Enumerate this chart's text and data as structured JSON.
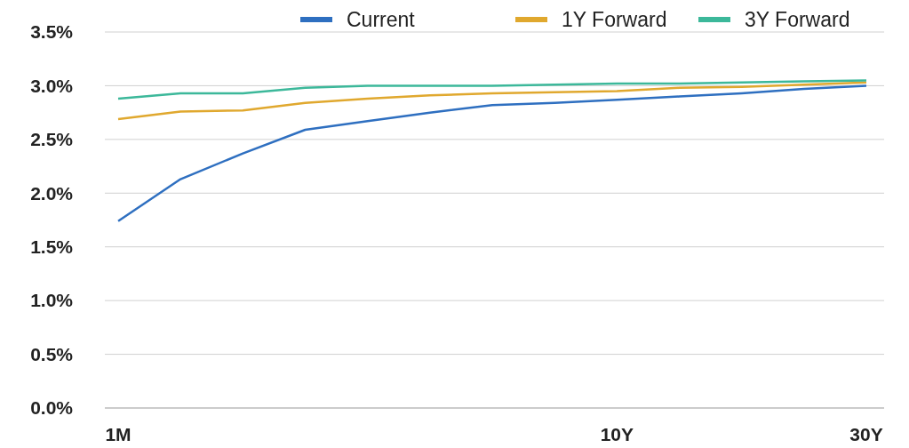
{
  "chart_data": {
    "type": "line",
    "categories": [
      "1M",
      null,
      null,
      null,
      null,
      null,
      null,
      null,
      "10Y",
      null,
      null,
      null,
      "30Y"
    ],
    "series": [
      {
        "name": "Current",
        "color": "#2e6fc0",
        "values": [
          1.74,
          2.13,
          2.37,
          2.59,
          2.67,
          2.75,
          2.82,
          2.84,
          2.87,
          2.9,
          2.93,
          2.97,
          3.0
        ]
      },
      {
        "name": "1Y Forward",
        "color": "#e0a82e",
        "values": [
          2.69,
          2.76,
          2.77,
          2.84,
          2.88,
          2.91,
          2.93,
          2.94,
          2.95,
          2.98,
          2.99,
          3.01,
          3.03
        ]
      },
      {
        "name": "3Y Forward",
        "color": "#3cb89a",
        "values": [
          2.88,
          2.93,
          2.93,
          2.98,
          3.0,
          3.0,
          3.0,
          3.01,
          3.02,
          3.02,
          3.03,
          3.04,
          3.05
        ]
      }
    ],
    "ylim": [
      0,
      3.5
    ],
    "yticks": [
      {
        "value": 0,
        "label": "0.0%"
      },
      {
        "value": 0.5,
        "label": "0.5%"
      },
      {
        "value": 1,
        "label": "1.0%"
      },
      {
        "value": 1.5,
        "label": "1.5%"
      },
      {
        "value": 2,
        "label": "2.0%"
      },
      {
        "value": 2.5,
        "label": "2.5%"
      },
      {
        "value": 3,
        "label": "3.0%"
      },
      {
        "value": 3.5,
        "label": "3.5%"
      }
    ],
    "grid": "y",
    "legend": "top right",
    "marker": "none",
    "line_style": "solid"
  }
}
